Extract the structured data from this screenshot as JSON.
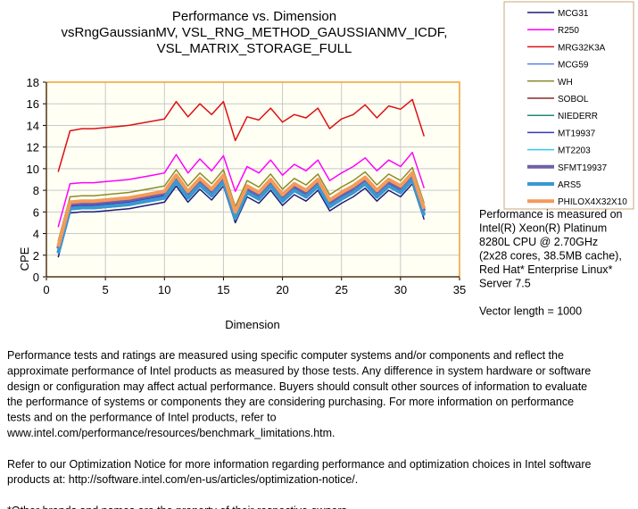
{
  "chart_data": {
    "type": "line",
    "title": [
      "Performance vs. Dimension",
      "vsRngGaussianMV,  VSL_RNG_METHOD_GAUSSIANMV_ICDF,",
      "VSL_MATRIX_STORAGE_FULL"
    ],
    "x_label": "Dimension",
    "y_label": "CPE",
    "xlim": [
      0,
      35
    ],
    "xticks": [
      0,
      5,
      10,
      15,
      20,
      25,
      30,
      35
    ],
    "ylim": [
      0,
      18
    ],
    "yticks": [
      0,
      2,
      4,
      6,
      8,
      10,
      12,
      14,
      16,
      18
    ],
    "grid": true,
    "x": [
      1,
      2,
      3,
      4,
      5,
      6,
      7,
      8,
      9,
      10,
      11,
      12,
      13,
      14,
      15,
      16,
      17,
      18,
      19,
      20,
      21,
      22,
      23,
      24,
      25,
      26,
      27,
      28,
      29,
      30,
      31,
      32
    ],
    "series": [
      {
        "name": "MCG31",
        "color": "#1c1c78",
        "width": 1.5,
        "values": [
          1.8,
          5.9,
          6.0,
          6.0,
          6.1,
          6.2,
          6.3,
          6.5,
          6.7,
          6.9,
          8.4,
          6.9,
          8.1,
          7.1,
          8.4,
          5.0,
          7.4,
          6.8,
          8.0,
          6.6,
          7.6,
          7.0,
          8.0,
          6.1,
          6.8,
          7.4,
          8.2,
          7.0,
          8.0,
          7.4,
          8.6,
          5.3
        ]
      },
      {
        "name": "R250",
        "color": "#ff00ff",
        "width": 1.5,
        "values": [
          4.6,
          8.6,
          8.7,
          8.7,
          8.8,
          8.9,
          9.0,
          9.2,
          9.4,
          9.6,
          11.3,
          9.6,
          10.9,
          9.8,
          11.2,
          7.9,
          10.2,
          9.6,
          10.8,
          9.4,
          10.4,
          9.8,
          10.8,
          8.9,
          9.6,
          10.2,
          11.0,
          9.8,
          10.8,
          10.2,
          11.5,
          8.2
        ]
      },
      {
        "name": "MRG32K3A",
        "color": "#dd1111",
        "width": 1.5,
        "values": [
          9.7,
          13.5,
          13.7,
          13.7,
          13.8,
          13.9,
          14.0,
          14.2,
          14.4,
          14.6,
          16.2,
          14.8,
          16.0,
          15.0,
          16.2,
          12.6,
          14.8,
          14.5,
          15.6,
          14.3,
          15.0,
          14.7,
          15.6,
          13.7,
          14.6,
          15.0,
          15.9,
          14.7,
          15.8,
          15.5,
          16.4,
          13.0
        ]
      },
      {
        "name": "MCG59",
        "color": "#5a80e8",
        "width": 1.5,
        "values": [
          2.1,
          6.2,
          6.3,
          6.3,
          6.4,
          6.5,
          6.6,
          6.8,
          7.0,
          7.2,
          8.7,
          7.2,
          8.4,
          7.4,
          8.7,
          5.3,
          7.7,
          7.1,
          8.3,
          6.9,
          7.9,
          7.3,
          8.3,
          6.4,
          7.1,
          7.7,
          8.5,
          7.3,
          8.3,
          7.7,
          8.9,
          5.6
        ]
      },
      {
        "name": "WH",
        "color": "#8c8c28",
        "width": 1.5,
        "values": [
          3.3,
          7.4,
          7.5,
          7.5,
          7.6,
          7.7,
          7.8,
          8.0,
          8.2,
          8.4,
          9.9,
          8.4,
          9.6,
          8.6,
          9.9,
          6.5,
          8.9,
          8.3,
          9.5,
          8.1,
          9.1,
          8.5,
          9.5,
          7.6,
          8.3,
          8.9,
          9.7,
          8.5,
          9.5,
          8.9,
          10.1,
          6.8
        ]
      },
      {
        "name": "SOBOL",
        "color": "#8b2a2a",
        "width": 1.5,
        "values": [
          2.7,
          6.8,
          6.9,
          6.9,
          7.0,
          7.1,
          7.2,
          7.4,
          7.6,
          7.8,
          9.3,
          7.8,
          9.0,
          8.0,
          9.3,
          5.9,
          8.3,
          7.7,
          8.9,
          7.5,
          8.5,
          7.9,
          8.9,
          7.0,
          7.7,
          8.3,
          9.1,
          7.9,
          8.9,
          8.3,
          9.5,
          6.2
        ]
      },
      {
        "name": "NIEDERR",
        "color": "#1f8a7a",
        "width": 1.5,
        "values": [
          2.5,
          6.6,
          6.7,
          6.7,
          6.8,
          6.9,
          7.0,
          7.2,
          7.4,
          7.6,
          9.1,
          7.6,
          8.8,
          7.8,
          9.1,
          5.7,
          8.1,
          7.5,
          8.7,
          7.3,
          8.3,
          7.7,
          8.7,
          6.8,
          7.5,
          8.1,
          8.9,
          7.7,
          8.7,
          8.1,
          9.3,
          6.0
        ]
      },
      {
        "name": "MT19937",
        "color": "#3434c8",
        "width": 1.5,
        "values": [
          2.4,
          6.5,
          6.6,
          6.6,
          6.7,
          6.8,
          6.9,
          7.1,
          7.3,
          7.5,
          9.0,
          7.5,
          8.7,
          7.7,
          9.0,
          5.6,
          8.0,
          7.4,
          8.6,
          7.2,
          8.2,
          7.6,
          8.6,
          6.7,
          7.4,
          8.0,
          8.8,
          7.6,
          8.6,
          8.0,
          9.2,
          5.9
        ]
      },
      {
        "name": "MT2203",
        "color": "#30c8ee",
        "width": 1.5,
        "values": [
          2.3,
          6.4,
          6.5,
          6.5,
          6.6,
          6.7,
          6.8,
          7.0,
          7.2,
          7.4,
          8.9,
          7.4,
          8.6,
          7.6,
          8.9,
          5.5,
          7.9,
          7.3,
          8.5,
          7.1,
          8.1,
          7.5,
          8.5,
          6.6,
          7.3,
          7.9,
          8.7,
          7.5,
          8.5,
          7.9,
          9.1,
          5.8
        ]
      },
      {
        "name": "SFMT19937",
        "color": "#7060a8",
        "width": 4,
        "values": [
          2.6,
          6.7,
          6.8,
          6.8,
          6.9,
          7.0,
          7.1,
          7.3,
          7.5,
          7.7,
          9.2,
          7.7,
          8.9,
          7.9,
          9.2,
          5.8,
          8.2,
          7.6,
          8.8,
          7.4,
          8.4,
          7.8,
          8.8,
          6.9,
          7.6,
          8.2,
          9.0,
          7.8,
          8.8,
          8.2,
          9.4,
          6.1
        ]
      },
      {
        "name": "ARS5",
        "color": "#3a98d0",
        "width": 4,
        "values": [
          2.2,
          6.3,
          6.4,
          6.4,
          6.5,
          6.6,
          6.7,
          6.9,
          7.1,
          7.3,
          8.8,
          7.3,
          8.5,
          7.5,
          8.8,
          5.4,
          7.8,
          7.2,
          8.4,
          7.0,
          8.0,
          7.4,
          8.4,
          6.5,
          7.2,
          7.8,
          8.6,
          7.4,
          8.4,
          7.8,
          9.0,
          5.7
        ]
      },
      {
        "name": "PHILOX4X32X10",
        "color": "#f49a5a",
        "width": 4,
        "values": [
          2.8,
          6.9,
          7.0,
          7.0,
          7.1,
          7.2,
          7.3,
          7.5,
          7.7,
          7.9,
          9.4,
          7.9,
          9.1,
          8.1,
          9.4,
          6.0,
          8.4,
          7.8,
          9.0,
          7.6,
          8.6,
          8.0,
          9.0,
          7.1,
          7.8,
          8.4,
          9.2,
          8.0,
          9.0,
          8.4,
          9.6,
          6.3
        ]
      }
    ]
  },
  "side_note": [
    "Performance is measured on",
    "Intel(R) Xeon(R) Platinum",
    "8280L CPU @ 2.70GHz",
    "(2x28 cores, 38.5MB cache),",
    "Red Hat* Enterprise Linux*",
    "Server 7.5",
    "Vector length = 1000"
  ],
  "disclaimer": [
    [
      "Performance tests and ratings are measured using specific computer systems and/or components and reflect the",
      "approximate performance of Intel products as measured by those tests. Any difference in system hardware or software",
      "design or configuration may affect actual performance. Buyers should consult other sources of information to evaluate",
      "the performance of systems or components they are considering purchasing. For more information on performance",
      "tests and on the performance of Intel products, refer to",
      "www.intel.com/performance/resources/benchmark_limitations.htm."
    ],
    [
      "Refer to our Optimization Notice for more information regarding performance and optimization choices in Intel software",
      "products at: http://software.intel.com/en-us/articles/optimization-notice/."
    ],
    [
      "*Other brands and names are the property of their respective owners"
    ]
  ]
}
